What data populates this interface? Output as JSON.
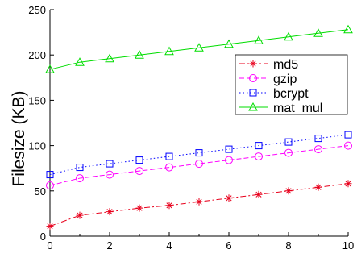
{
  "chart_data": {
    "type": "line",
    "title": "",
    "xlabel": "",
    "ylabel": "Filesize (KB)",
    "xlim": [
      0,
      10
    ],
    "ylim": [
      0,
      250
    ],
    "xticks": [
      0,
      2,
      4,
      6,
      8,
      10
    ],
    "yticks": [
      0,
      50,
      100,
      150,
      200,
      250
    ],
    "grid": false,
    "legend_position": "right",
    "x": [
      0,
      1,
      2,
      3,
      4,
      5,
      6,
      7,
      8,
      9,
      10
    ],
    "series": [
      {
        "name": "md5",
        "color": "#e8001c",
        "marker": "asterisk",
        "line_style": "dashdot",
        "values": [
          11,
          23,
          27,
          31,
          34,
          38,
          42,
          46,
          50,
          54,
          58
        ]
      },
      {
        "name": "gzip",
        "color": "#ff00ff",
        "marker": "circle",
        "line_style": "dashed",
        "values": [
          56,
          64,
          68,
          72,
          76,
          80,
          84,
          88,
          92,
          96,
          100
        ]
      },
      {
        "name": "bcrypt",
        "color": "#0000ff",
        "marker": "square",
        "line_style": "dotted",
        "values": [
          68,
          76,
          80,
          84,
          88,
          92,
          96,
          100,
          104,
          108,
          112
        ]
      },
      {
        "name": "mat_mul",
        "color": "#00dd00",
        "marker": "triangle",
        "line_style": "solid",
        "values": [
          184,
          192,
          196,
          200,
          204,
          208,
          212,
          216,
          220,
          224,
          228
        ]
      }
    ]
  }
}
